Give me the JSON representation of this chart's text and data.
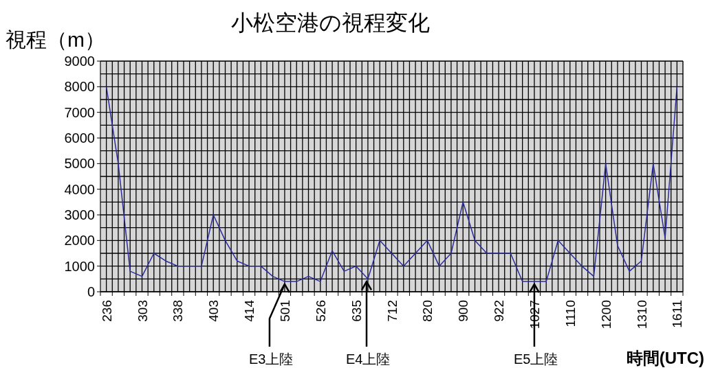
{
  "chart_data": {
    "type": "line",
    "title": "小松空港の視程変化",
    "ylabel": "視程（m）",
    "xlabel": "時間(UTC)",
    "categories": [
      "236",
      null,
      null,
      "303",
      null,
      null,
      "338",
      null,
      null,
      "403",
      null,
      null,
      "414",
      null,
      null,
      "501",
      null,
      null,
      "526",
      null,
      null,
      "635",
      null,
      null,
      "712",
      null,
      null,
      "820",
      null,
      null,
      "900",
      null,
      null,
      "922",
      null,
      null,
      "1027",
      null,
      null,
      "1110",
      null,
      null,
      "1200",
      null,
      null,
      "1310",
      null,
      null,
      "1611"
    ],
    "series": [
      {
        "color": "#2b2b9e",
        "values": [
          8000,
          5000,
          800,
          600,
          1500,
          1200,
          1000,
          1000,
          1000,
          3000,
          2000,
          1200,
          1000,
          1000,
          600,
          400,
          400,
          600,
          400,
          1600,
          800,
          1000,
          500,
          2000,
          1500,
          1000,
          1500,
          2000,
          1000,
          1500,
          3500,
          2000,
          1500,
          1500,
          1500,
          400,
          400,
          400,
          2000,
          1500,
          1000,
          600,
          5000,
          1800,
          800,
          1200,
          5000,
          2100,
          8000
        ]
      }
    ],
    "ylim": [
      0,
      9000
    ],
    "yticks": [
      0,
      1000,
      2000,
      3000,
      4000,
      5000,
      6000,
      7000,
      8000,
      9000
    ],
    "grid": true,
    "annotations": [
      {
        "text": "E3上陸",
        "x": "501",
        "y": 400
      },
      {
        "text": "E4上陸",
        "y": 500
      },
      {
        "text": "E5上陸",
        "x": "1027",
        "y": 400
      }
    ]
  }
}
